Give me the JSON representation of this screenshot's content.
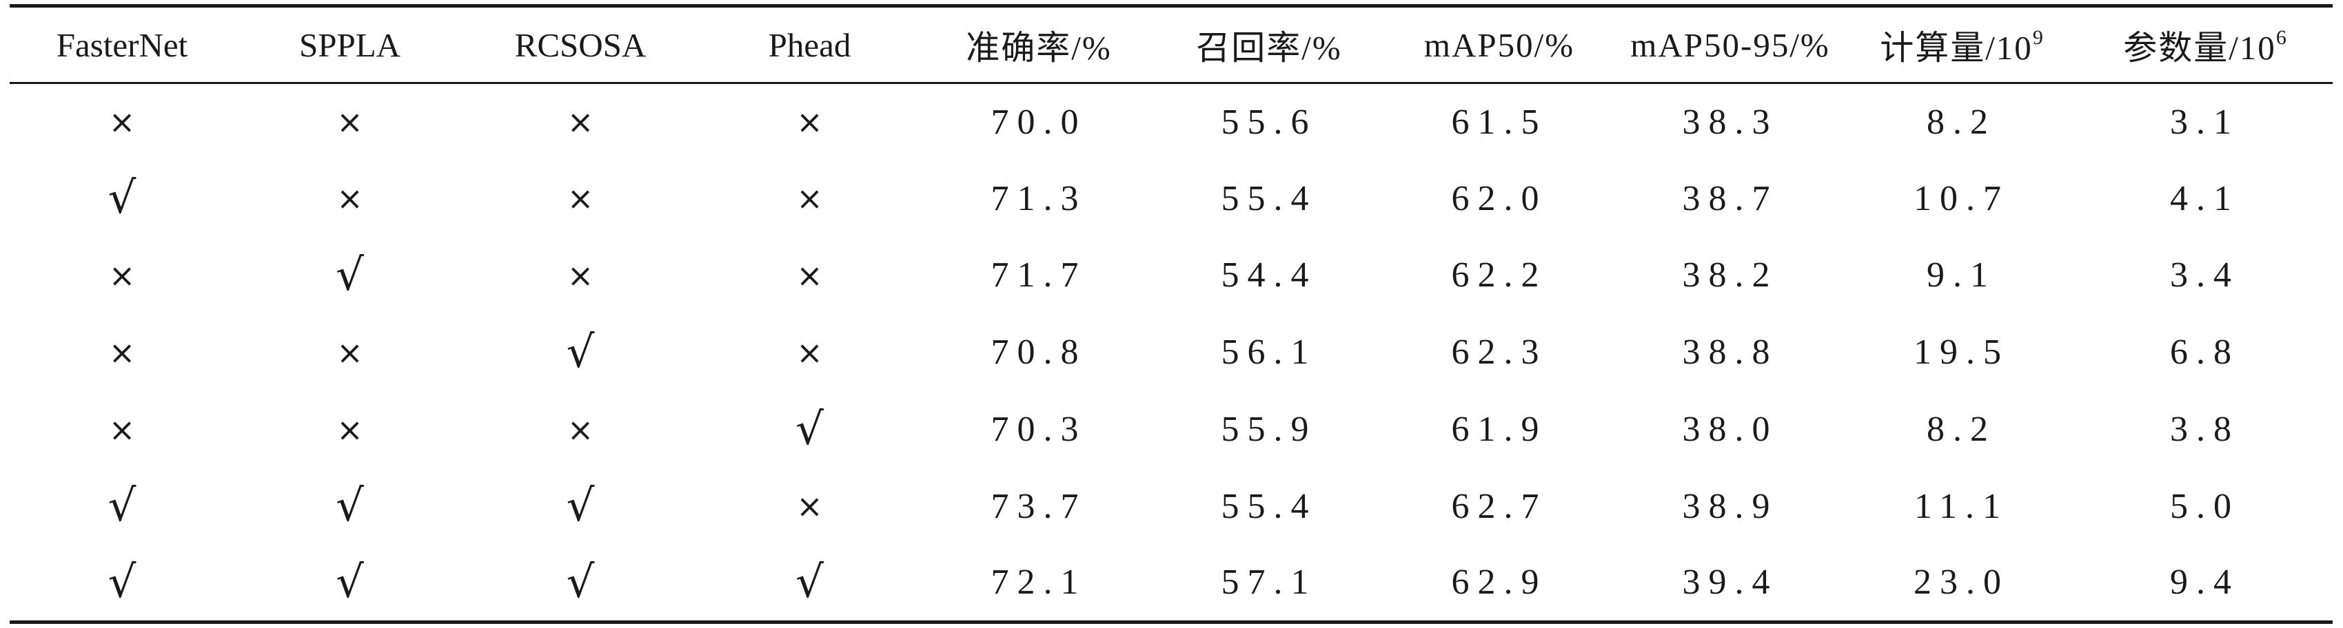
{
  "table": {
    "headers": [
      {
        "text": "FasterNet"
      },
      {
        "text": "SPPLA"
      },
      {
        "text": "RCSOSA"
      },
      {
        "text": "Phead"
      },
      {
        "text": "准确率/%"
      },
      {
        "text": "召回率/%"
      },
      {
        "text": "mAP50/%"
      },
      {
        "text": "mAP50-95/%"
      },
      {
        "text": "计算量/10",
        "sup": "9"
      },
      {
        "text": "参数量/10",
        "sup": "6"
      }
    ],
    "marks": {
      "check": "√",
      "cross": "×"
    },
    "rows": [
      {
        "modules": [
          "×",
          "×",
          "×",
          "×"
        ],
        "metrics": [
          "70.0",
          "55.6",
          "61.5",
          "38.3",
          "8.2",
          "3.1"
        ]
      },
      {
        "modules": [
          "√",
          "×",
          "×",
          "×"
        ],
        "metrics": [
          "71.3",
          "55.4",
          "62.0",
          "38.7",
          "10.7",
          "4.1"
        ]
      },
      {
        "modules": [
          "×",
          "√",
          "×",
          "×"
        ],
        "metrics": [
          "71.7",
          "54.4",
          "62.2",
          "38.2",
          "9.1",
          "3.4"
        ]
      },
      {
        "modules": [
          "×",
          "×",
          "√",
          "×"
        ],
        "metrics": [
          "70.8",
          "56.1",
          "62.3",
          "38.8",
          "19.5",
          "6.8"
        ]
      },
      {
        "modules": [
          "×",
          "×",
          "×",
          "√"
        ],
        "metrics": [
          "70.3",
          "55.9",
          "61.9",
          "38.0",
          "8.2",
          "3.8"
        ]
      },
      {
        "modules": [
          "√",
          "√",
          "√",
          "×"
        ],
        "metrics": [
          "73.7",
          "55.4",
          "62.7",
          "38.9",
          "11.1",
          "5.0"
        ]
      },
      {
        "modules": [
          "√",
          "√",
          "√",
          "√"
        ],
        "metrics": [
          "72.1",
          "57.1",
          "62.9",
          "39.4",
          "23.0",
          "9.4"
        ]
      }
    ]
  }
}
